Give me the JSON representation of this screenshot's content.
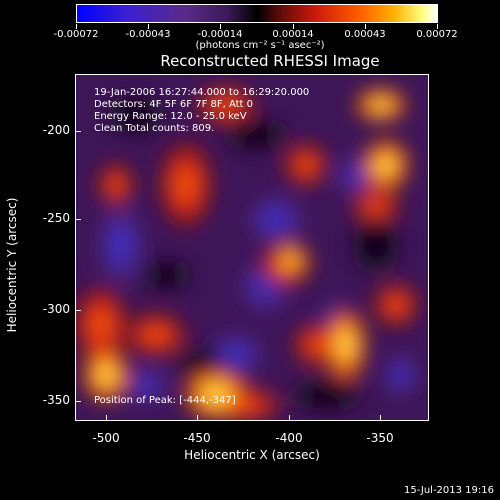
{
  "colorbar": {
    "tick_labels": [
      "-0.00072",
      "-0.00043",
      "-0.00014",
      "0.00014",
      "0.00043",
      "0.00072"
    ],
    "units": "(photons cm⁻² s⁻¹ asec⁻²)"
  },
  "title": "Reconstructed RHESSI Image",
  "info": {
    "line1": "19-Jan-2006 16:27:44.000 to 16:29:20.000",
    "line2": "Detectors: 4F 5F 6F 7F 8F, Att 0",
    "line3": "Energy Range: 12.0 - 25.0 keV",
    "line4": "Clean     Total counts: 809.",
    "peak": "Position of Peak: [-444,-347]"
  },
  "axes": {
    "xlabel": "Heliocentric X (arcsec)",
    "ylabel": "Heliocentric Y (arcsec)",
    "xticks": [
      "-500",
      "-450",
      "-400",
      "-350"
    ],
    "yticks": [
      "-200",
      "-250",
      "-300",
      "-350"
    ]
  },
  "stamp": "15-Jul-2013 19:16"
}
